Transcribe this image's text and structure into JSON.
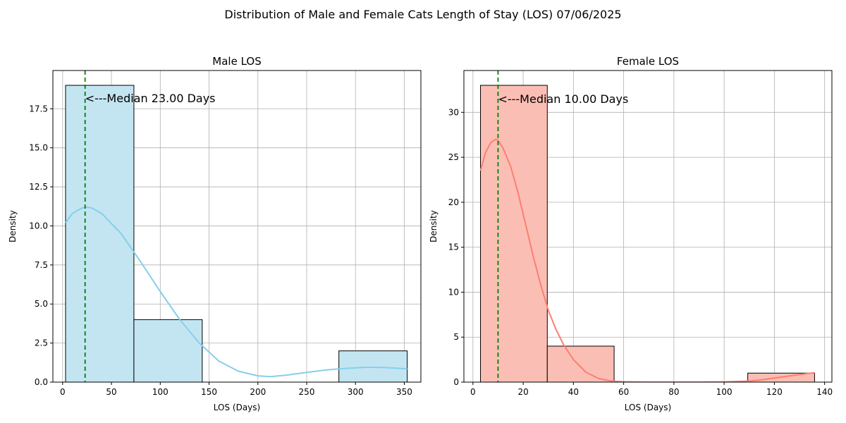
{
  "figure": {
    "suptitle": "Distribution of Male and Female Cats Length of Stay (LOS) 07/06/2025"
  },
  "chart_data": [
    {
      "type": "histogram",
      "title": "Male LOS",
      "xlabel": "LOS (Days)",
      "ylabel": "Density",
      "xlim": [
        -10,
        367
      ],
      "ylim": [
        0,
        19.95
      ],
      "xticks": [
        0,
        50,
        100,
        150,
        200,
        250,
        300,
        350
      ],
      "xtick_labels": [
        "0",
        "50",
        "100",
        "150",
        "200",
        "250",
        "300",
        "350"
      ],
      "yticks": [
        0,
        2.5,
        5,
        7.5,
        10,
        12.5,
        15,
        17.5
      ],
      "ytick_labels": [
        "0.0",
        "2.5",
        "5.0",
        "7.5",
        "10.0",
        "12.5",
        "15.0",
        "17.5"
      ],
      "bins": [
        {
          "x0": 3,
          "x1": 73,
          "count": 19
        },
        {
          "x0": 73,
          "x1": 143,
          "count": 4
        },
        {
          "x0": 143,
          "x1": 213,
          "count": 0
        },
        {
          "x0": 213,
          "x1": 283,
          "count": 0
        },
        {
          "x0": 283,
          "x1": 353,
          "count": 2
        }
      ],
      "kde": {
        "x": [
          3,
          10,
          20,
          25,
          30,
          40,
          60,
          80,
          100,
          120,
          140,
          160,
          180,
          200,
          213,
          230,
          250,
          270,
          290,
          310,
          320,
          330,
          340,
          353
        ],
        "y": [
          10.2,
          10.8,
          11.15,
          11.2,
          11.15,
          10.8,
          9.5,
          7.7,
          5.8,
          4.0,
          2.5,
          1.35,
          0.7,
          0.4,
          0.35,
          0.45,
          0.62,
          0.78,
          0.88,
          0.95,
          0.95,
          0.93,
          0.9,
          0.85
        ]
      },
      "median": 23,
      "annotation": "<---Median 23.00 Days",
      "annotation_y": 18.2,
      "bar_fill": "#c3e5f2",
      "line_color": "#87ceeb",
      "median_color": "#008000",
      "grid": true
    },
    {
      "type": "histogram",
      "title": "Female LOS",
      "xlabel": "LOS (Days)",
      "ylabel": "Density",
      "xlim": [
        -3.6,
        142.9
      ],
      "ylim": [
        0,
        34.65
      ],
      "xticks": [
        0,
        20,
        40,
        60,
        80,
        100,
        120,
        140
      ],
      "xtick_labels": [
        "0",
        "20",
        "40",
        "60",
        "80",
        "100",
        "120",
        "140"
      ],
      "yticks": [
        0,
        5,
        10,
        15,
        20,
        25,
        30
      ],
      "ytick_labels": [
        "0",
        "5",
        "10",
        "15",
        "20",
        "25",
        "30"
      ],
      "bins": [
        {
          "x0": 3,
          "x1": 29.6,
          "count": 33
        },
        {
          "x0": 29.6,
          "x1": 56.2,
          "count": 4
        },
        {
          "x0": 56.2,
          "x1": 82.8,
          "count": 0
        },
        {
          "x0": 82.8,
          "x1": 109.4,
          "count": 0
        },
        {
          "x0": 109.4,
          "x1": 136,
          "count": 1
        }
      ],
      "kde": {
        "x": [
          3,
          5,
          7,
          9,
          10,
          12,
          15,
          18,
          21,
          24,
          27,
          30,
          33,
          36,
          40,
          45,
          50,
          55,
          60,
          70,
          80,
          90,
          100,
          110,
          115,
          120,
          125,
          130,
          136
        ],
        "y": [
          23.5,
          25.5,
          26.6,
          27.0,
          26.9,
          26.0,
          24.0,
          21.0,
          17.5,
          14.0,
          10.8,
          8.0,
          5.9,
          4.2,
          2.5,
          1.1,
          0.4,
          0.12,
          0.03,
          0.0,
          0.0,
          0.0,
          0.02,
          0.12,
          0.25,
          0.45,
          0.65,
          0.85,
          1.05
        ]
      },
      "median": 10,
      "annotation": "<---Median 10.00 Days",
      "annotation_y": 31.5,
      "bar_fill": "#fbbeb4",
      "line_color": "#fa8072",
      "median_color": "#008000",
      "grid": true
    }
  ]
}
